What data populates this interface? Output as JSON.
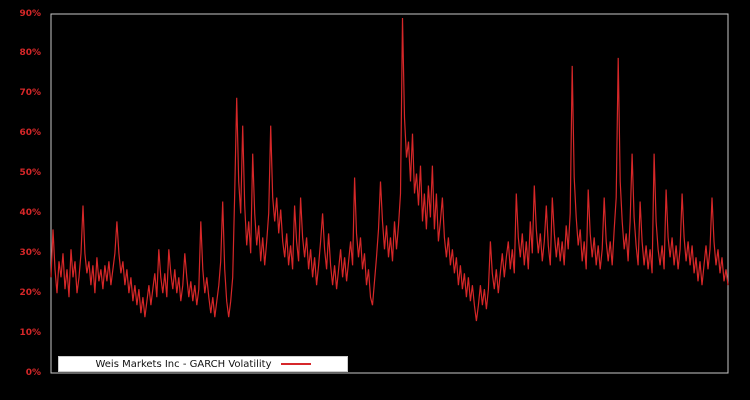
{
  "chart_data": {
    "type": "line",
    "title": "",
    "xlabel": "",
    "ylabel": "",
    "ylim": [
      0,
      90
    ],
    "yticks": [
      "0%",
      "10%",
      "20%",
      "30%",
      "40%",
      "50%",
      "60%",
      "70%",
      "80%",
      "90%"
    ],
    "x_tick_labels": [],
    "grid": false,
    "background_color": "#000000",
    "spine_color": "#c9c9c9",
    "tick_label_color": "#d62728",
    "line_color": "#d62728",
    "legend": {
      "label": "Weis Markets Inc - GARCH Volatility",
      "position": "lower-left",
      "background": "#ffffff",
      "text_color": "#111111",
      "swatch_color": "#d6272b"
    },
    "series": [
      {
        "name": "Weis Markets Inc - GARCH Volatility",
        "unit": "percent",
        "values": [
          24,
          36,
          26,
          20,
          28,
          24,
          30,
          21,
          26,
          19,
          31,
          24,
          28,
          20,
          24,
          30,
          42,
          30,
          25,
          28,
          22,
          27,
          20,
          29,
          23,
          26,
          21,
          27,
          23,
          28,
          22,
          26,
          30,
          38,
          30,
          25,
          28,
          22,
          26,
          20,
          24,
          18,
          22,
          17,
          21,
          15,
          19,
          14,
          18,
          22,
          17,
          21,
          25,
          19,
          31,
          24,
          20,
          25,
          19,
          31,
          25,
          21,
          26,
          20,
          24,
          18,
          22,
          30,
          24,
          19,
          23,
          18,
          22,
          17,
          21,
          38,
          26,
          20,
          24,
          19,
          15,
          19,
          14,
          18,
          22,
          28,
          43,
          26,
          18,
          14,
          18,
          24,
          45,
          69,
          48,
          40,
          62,
          42,
          32,
          38,
          30,
          55,
          40,
          32,
          37,
          28,
          34,
          27,
          33,
          40,
          62,
          44,
          38,
          44,
          35,
          41,
          33,
          29,
          35,
          27,
          32,
          26,
          42,
          33,
          28,
          44,
          34,
          29,
          34,
          26,
          31,
          24,
          29,
          22,
          27,
          33,
          40,
          31,
          26,
          35,
          27,
          22,
          27,
          21,
          26,
          31,
          24,
          29,
          23,
          28,
          33,
          27,
          49,
          35,
          29,
          34,
          26,
          30,
          22,
          26,
          19,
          17,
          23,
          29,
          36,
          48,
          38,
          31,
          37,
          29,
          34,
          28,
          38,
          31,
          37,
          45,
          89,
          64,
          54,
          58,
          48,
          60,
          45,
          50,
          42,
          52,
          38,
          45,
          36,
          47,
          39,
          52,
          36,
          45,
          33,
          38,
          44,
          34,
          29,
          34,
          27,
          31,
          25,
          29,
          22,
          27,
          21,
          25,
          19,
          24,
          18,
          22,
          17,
          13,
          17,
          22,
          17,
          21,
          16,
          21,
          33,
          25,
          21,
          26,
          20,
          25,
          30,
          24,
          29,
          33,
          26,
          31,
          25,
          45,
          34,
          29,
          35,
          27,
          33,
          26,
          38,
          30,
          47,
          36,
          30,
          35,
          28,
          33,
          42,
          32,
          27,
          44,
          35,
          29,
          34,
          28,
          33,
          27,
          37,
          31,
          40,
          77,
          49,
          39,
          32,
          36,
          28,
          33,
          26,
          46,
          35,
          29,
          34,
          27,
          32,
          26,
          31,
          44,
          33,
          28,
          33,
          27,
          36,
          44,
          79,
          48,
          38,
          31,
          35,
          28,
          38,
          55,
          39,
          32,
          27,
          43,
          33,
          27,
          32,
          26,
          31,
          25,
          55,
          38,
          31,
          27,
          32,
          26,
          46,
          34,
          29,
          34,
          27,
          32,
          26,
          31,
          45,
          34,
          28,
          33,
          27,
          32,
          25,
          29,
          23,
          28,
          22,
          27,
          32,
          26,
          31,
          44,
          33,
          27,
          31,
          25,
          29,
          23,
          26,
          22
        ]
      }
    ]
  }
}
